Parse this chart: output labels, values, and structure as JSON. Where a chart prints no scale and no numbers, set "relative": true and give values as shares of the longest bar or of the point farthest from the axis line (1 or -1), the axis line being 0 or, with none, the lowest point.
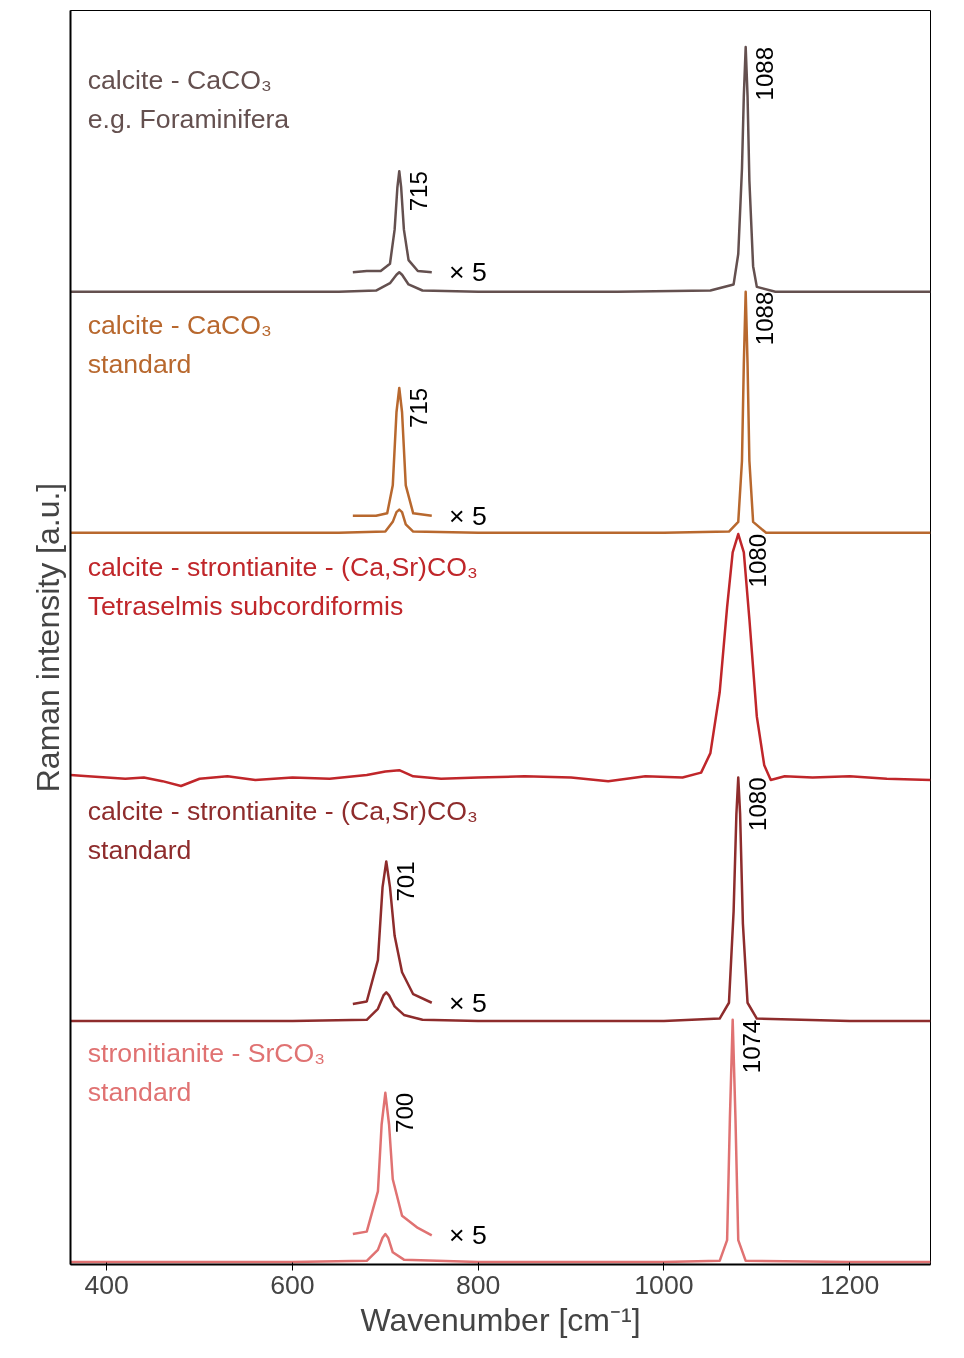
{
  "chart_data": {
    "type": "line",
    "relative": true,
    "xlabel": "Wavenumber [cm⁻¹]",
    "ylabel": "Raman intensity [a.u.]",
    "xlim": [
      361,
      1287
    ],
    "xticks": [
      400,
      600,
      800,
      1000,
      1200
    ],
    "series": [
      {
        "name": "calcite - CaCO₃\ne.g. Foraminifera",
        "color": "#64504f",
        "x": [
          361,
          500,
          650,
          690,
          705,
          712,
          715,
          718,
          725,
          740,
          800,
          950,
          1050,
          1075,
          1080,
          1084,
          1086,
          1088,
          1090,
          1092,
          1096,
          1100,
          1120,
          1200,
          1287
        ],
        "values": [
          0.799,
          0.799,
          0.799,
          0.8,
          0.806,
          0.813,
          0.815,
          0.813,
          0.805,
          0.8,
          0.799,
          0.799,
          0.8,
          0.805,
          0.83,
          0.9,
          0.96,
          1.0,
          0.96,
          0.89,
          0.82,
          0.803,
          0.799,
          0.799,
          0.799
        ]
      },
      {
        "color": "#64504f",
        "x": [
          665,
          680,
          695,
          705,
          710,
          713,
          715,
          717,
          720,
          725,
          735,
          750
        ],
        "values": [
          0.815,
          0.816,
          0.816,
          0.822,
          0.85,
          0.885,
          0.898,
          0.885,
          0.85,
          0.825,
          0.816,
          0.815
        ]
      },
      {
        "name": "calcite - CaCO₃\nstandard",
        "color": "#b8682e",
        "x": [
          361,
          500,
          650,
          700,
          708,
          712,
          715,
          718,
          722,
          730,
          800,
          1000,
          1070,
          1080,
          1084,
          1086,
          1088,
          1090,
          1092,
          1096,
          1110,
          1200,
          1287
        ],
        "values": [
          0.601,
          0.601,
          0.601,
          0.602,
          0.61,
          0.618,
          0.62,
          0.618,
          0.608,
          0.602,
          0.601,
          0.601,
          0.602,
          0.61,
          0.66,
          0.74,
          0.799,
          0.74,
          0.66,
          0.61,
          0.601,
          0.601,
          0.601
        ]
      },
      {
        "color": "#b8682e",
        "x": [
          665,
          690,
          702,
          708,
          712,
          715,
          718,
          722,
          730,
          750
        ],
        "values": [
          0.615,
          0.615,
          0.617,
          0.64,
          0.7,
          0.72,
          0.7,
          0.64,
          0.617,
          0.615
        ]
      },
      {
        "name": "calcite - strontianite - (Ca,Sr)CO₃\nTetraselmis subcordiformis",
        "color": "#c0262a",
        "x": [
          361,
          380,
          400,
          420,
          440,
          460,
          480,
          500,
          530,
          560,
          600,
          640,
          680,
          700,
          715,
          730,
          760,
          800,
          850,
          900,
          940,
          980,
          1020,
          1040,
          1050,
          1060,
          1068,
          1074,
          1080,
          1086,
          1092,
          1100,
          1108,
          1115,
          1130,
          1160,
          1200,
          1240,
          1287
        ],
        "values": [
          0.402,
          0.401,
          0.4,
          0.399,
          0.4,
          0.397,
          0.393,
          0.399,
          0.401,
          0.398,
          0.4,
          0.399,
          0.402,
          0.405,
          0.406,
          0.401,
          0.399,
          0.4,
          0.401,
          0.4,
          0.397,
          0.401,
          0.4,
          0.404,
          0.42,
          0.47,
          0.54,
          0.585,
          0.6,
          0.585,
          0.53,
          0.45,
          0.41,
          0.398,
          0.401,
          0.4,
          0.401,
          0.399,
          0.398
        ]
      },
      {
        "name": "calcite - strontianite - (Ca,Sr)CO₃\nstandard",
        "color": "#8e2c2c",
        "x": [
          361,
          600,
          680,
          692,
          698,
          701,
          704,
          710,
          720,
          740,
          800,
          1000,
          1060,
          1070,
          1075,
          1078,
          1080,
          1082,
          1085,
          1090,
          1100,
          1200,
          1287
        ],
        "values": [
          0.2,
          0.2,
          0.201,
          0.21,
          0.221,
          0.2235,
          0.221,
          0.212,
          0.205,
          0.201,
          0.2,
          0.2,
          0.202,
          0.215,
          0.29,
          0.37,
          0.4,
          0.37,
          0.28,
          0.215,
          0.202,
          0.2,
          0.2
        ]
      },
      {
        "color": "#8e2c2c",
        "x": [
          665,
          680,
          692,
          697,
          701,
          705,
          710,
          718,
          730,
          750
        ],
        "values": [
          0.214,
          0.216,
          0.25,
          0.31,
          0.331,
          0.31,
          0.27,
          0.24,
          0.222,
          0.215
        ]
      },
      {
        "name": "stronitianite - SrCO₃\nstandard",
        "color": "#e07272",
        "x": [
          361,
          600,
          680,
          692,
          697,
          700,
          703,
          708,
          720,
          800,
          1000,
          1060,
          1068,
          1071,
          1074,
          1077,
          1080,
          1088,
          1200,
          1287
        ],
        "values": [
          0.002,
          0.002,
          0.003,
          0.012,
          0.022,
          0.025,
          0.022,
          0.01,
          0.004,
          0.002,
          0.002,
          0.003,
          0.02,
          0.12,
          0.201,
          0.12,
          0.02,
          0.003,
          0.002,
          0.002
        ]
      },
      {
        "color": "#e07272",
        "x": [
          665,
          680,
          692,
          696,
          700,
          704,
          708,
          718,
          735,
          750
        ],
        "values": [
          0.025,
          0.027,
          0.06,
          0.115,
          0.141,
          0.115,
          0.07,
          0.04,
          0.03,
          0.024
        ]
      }
    ],
    "annotations": [
      {
        "text": "1088",
        "x": 1088,
        "y": 1.0
      },
      {
        "text": "715",
        "x": 715,
        "y": 0.898
      },
      "× 5",
      {
        "text": "1088",
        "x": 1088,
        "y": 0.799
      },
      {
        "text": "715",
        "x": 715,
        "y": 0.72
      },
      "× 5",
      {
        "text": "1080",
        "x": 1080,
        "y": 0.6
      },
      {
        "text": "1080",
        "x": 1080,
        "y": 0.4
      },
      {
        "text": "701",
        "x": 701,
        "y": 0.331
      },
      "× 5",
      {
        "text": "1074",
        "x": 1074,
        "y": 0.201
      },
      {
        "text": "700",
        "x": 700,
        "y": 0.141
      },
      "× 5"
    ]
  }
}
